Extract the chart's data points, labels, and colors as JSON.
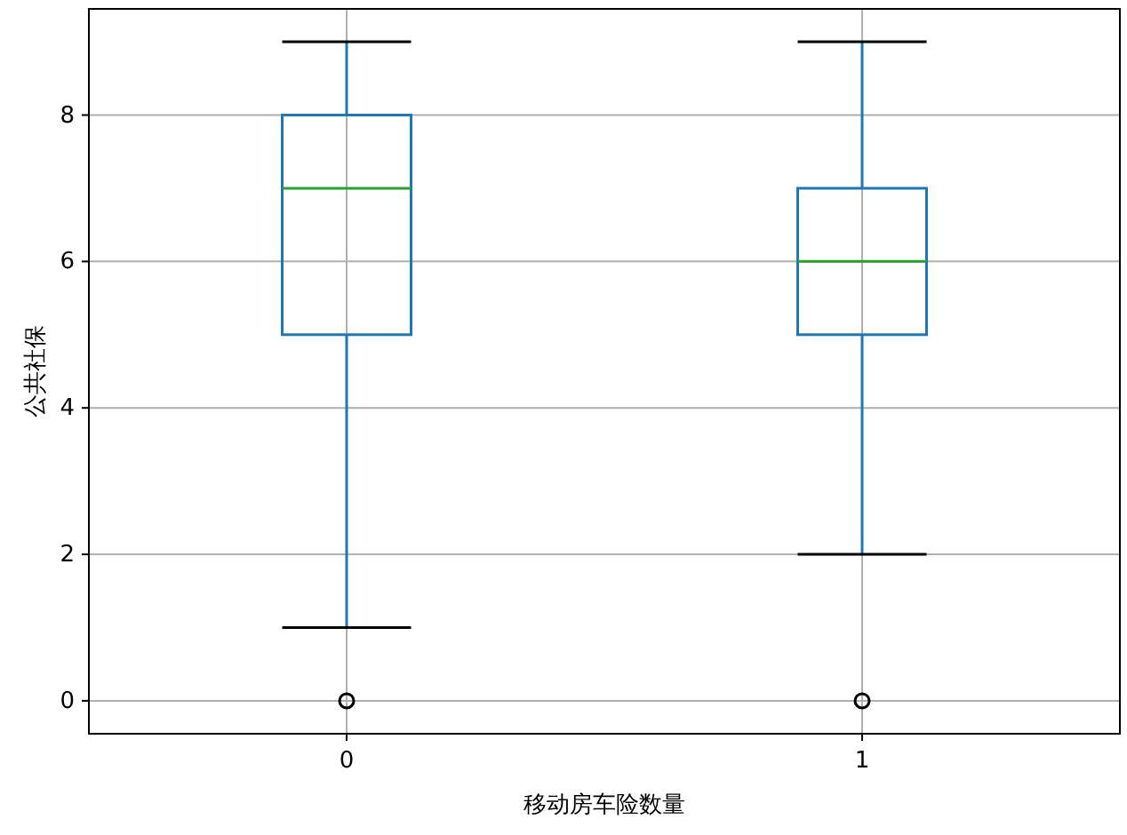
{
  "chart_data": {
    "type": "box",
    "xlabel": "移动房车险数量",
    "ylabel": "公共社保",
    "categories": [
      "0",
      "1"
    ],
    "color": "#1f77b4",
    "boxes": [
      {
        "low": 1,
        "q1": 5,
        "median": 7,
        "q3": 8,
        "high": 9,
        "outliers": [
          0
        ]
      },
      {
        "low": 2,
        "q1": 5,
        "median": 6,
        "q3": 7,
        "high": 9,
        "outliers": [
          0
        ]
      }
    ],
    "ylim": [
      -0.45,
      9.45
    ],
    "yticks": [
      0,
      2,
      4,
      6,
      8
    ],
    "grid": true
  }
}
